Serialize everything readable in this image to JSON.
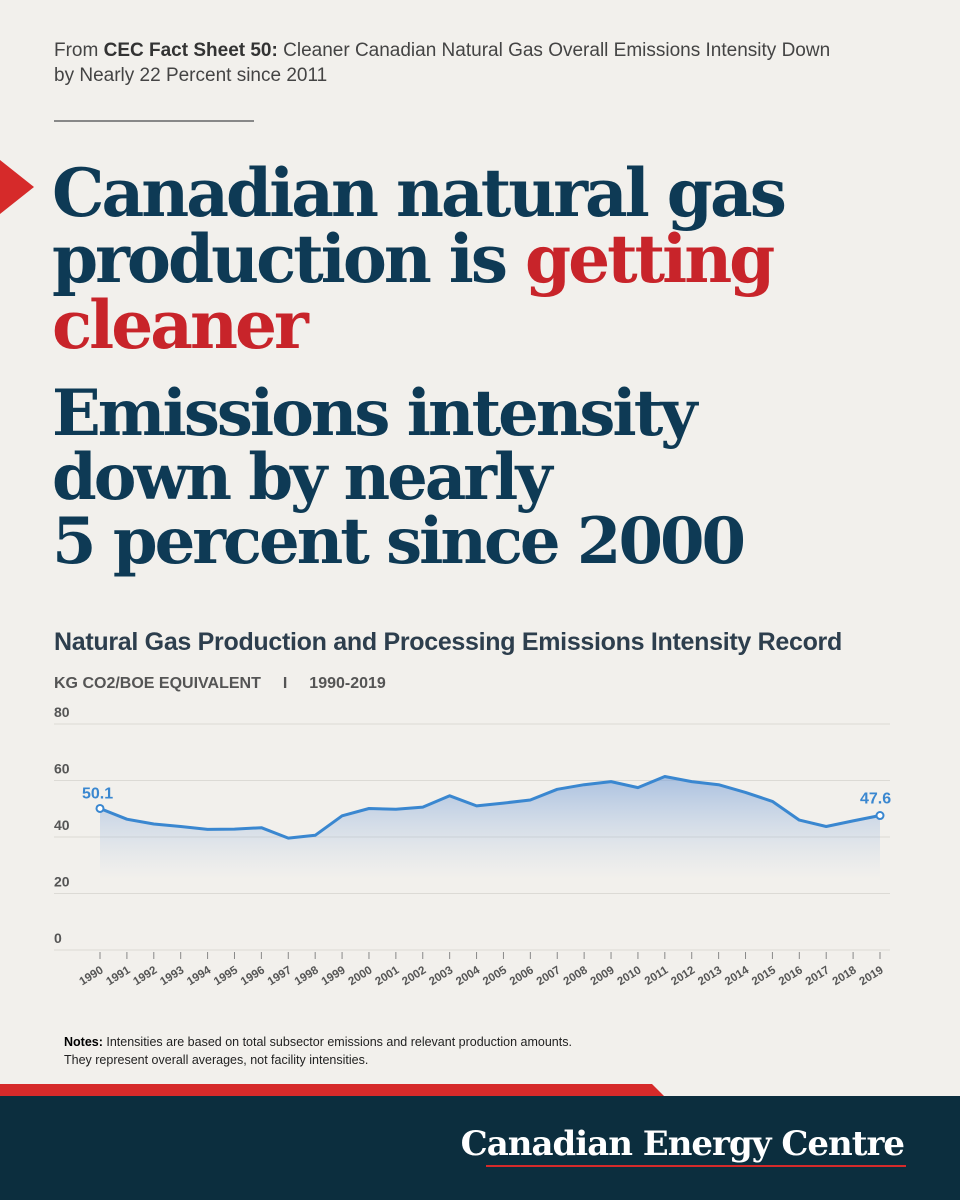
{
  "source": {
    "prefix": "From ",
    "bold": "CEC Fact Sheet 50:",
    "rest": " Cleaner Canadian Natural Gas Overall Emissions Intensity Down by Nearly 22 Percent since 2011"
  },
  "headline": {
    "line1": "Canadian natural gas",
    "line2a": "production is ",
    "line2b": "getting",
    "line3": "cleaner"
  },
  "subhead": {
    "line1": "Emissions intensity",
    "line2": "down by nearly",
    "line3": "5 percent since 2000"
  },
  "chart_data": {
    "type": "area",
    "title": "Natural Gas Production and Processing Emissions Intensity Record",
    "units": "KG CO2/BOE EQUIVALENT",
    "range_label": "1990-2019",
    "x": [
      "1990",
      "1991",
      "1992",
      "1993",
      "1994",
      "1995",
      "1996",
      "1997",
      "1998",
      "1999",
      "2000",
      "2001",
      "2002",
      "2003",
      "2004",
      "2005",
      "2006",
      "2007",
      "2008",
      "2009",
      "2010",
      "2011",
      "2012",
      "2013",
      "2014",
      "2015",
      "2016",
      "2017",
      "2018",
      "2019"
    ],
    "series": [
      {
        "values": [
          50.1,
          46.3,
          44.6,
          43.7,
          42.7,
          42.8,
          43.3,
          39.6,
          40.6,
          47.5,
          50.1,
          49.8,
          50.6,
          54.6,
          51.0,
          52.0,
          53.1,
          56.9,
          58.5,
          59.6,
          57.5,
          61.4,
          59.6,
          58.5,
          55.8,
          52.6,
          46.0,
          43.7,
          45.7,
          47.6
        ]
      }
    ],
    "ylim": [
      0,
      80
    ],
    "yticks": [
      "0",
      "20",
      "40",
      "60",
      "80"
    ],
    "labels": {
      "first": "50.1",
      "last": "47.6"
    },
    "grid": true,
    "line_color": "#3a87d0"
  },
  "notes": {
    "bold": "Notes:",
    "line1": " Intensities are based on total subsector emissions and relevant production amounts.",
    "line2": "They represent overall averages, not facility intensities."
  },
  "footer": {
    "brand": "Canadian Energy Centre"
  },
  "colors": {
    "navy": "#0e3a55",
    "red": "#c8242a",
    "footer_bg": "#0c2e3e"
  }
}
